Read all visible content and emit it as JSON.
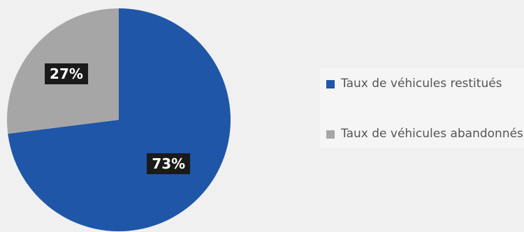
{
  "chart_data": {
    "type": "pie",
    "title": "",
    "slices": [
      {
        "name": "Taux de véhicules restitués",
        "value": 73,
        "label": "73%",
        "color": "#1f56a8"
      },
      {
        "name": "Taux de véhicules abandonnés",
        "value": 27,
        "label": "27%",
        "color": "#a6a6a6"
      }
    ],
    "legend": {
      "position": "right",
      "entries": [
        "Taux de véhicules restitués",
        "Taux de véhicules abandonnés"
      ]
    }
  },
  "colors": {
    "background": "#f0f0f0",
    "label_box": "#1a1a1a",
    "label_text": "#ffffff",
    "legend_text": "#555555"
  }
}
